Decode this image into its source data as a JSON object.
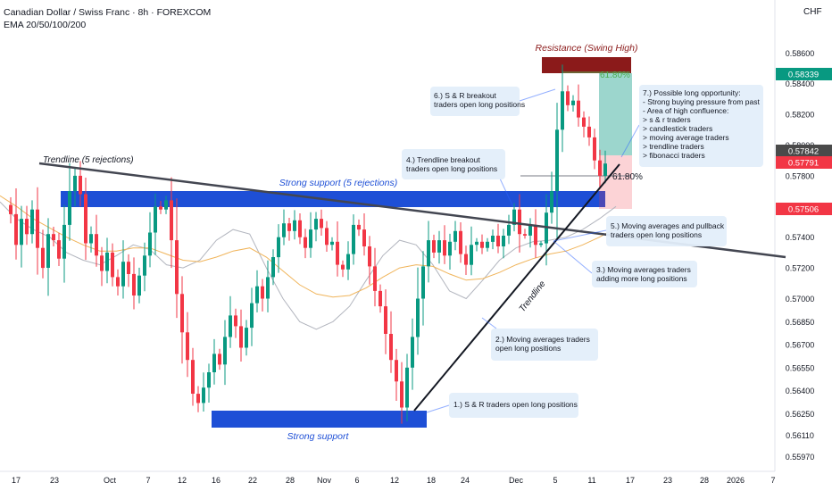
{
  "header": {
    "title": "Canadian Dollar / Swiss Franc · 8h · FOREXCOM",
    "indicator": "EMA 20/50/100/200",
    "currency": "CHF"
  },
  "chart_data": {
    "type": "candlestick",
    "symbol": "CADCHF",
    "interval": "8h",
    "ylim": [
      0.5595,
      0.5873
    ],
    "y_ticks": [
      0.5597,
      0.5611,
      0.5625,
      0.564,
      0.5655,
      0.567,
      0.5685,
      0.57,
      0.572,
      0.574,
      0.576,
      0.578,
      0.58,
      0.582,
      0.584,
      0.586
    ],
    "x_ticks": [
      "17",
      "23",
      "Oct",
      "7",
      "12",
      "16",
      "22",
      "28",
      "Nov",
      "6",
      "12",
      "18",
      "24",
      "Dec",
      "5",
      "11",
      "17",
      "23",
      "28",
      "2026",
      "7"
    ],
    "price_badges": [
      {
        "value": "0.58339",
        "color": "#089981"
      },
      {
        "value": "0.57842",
        "color": "#4a4a4a"
      },
      {
        "value": "0.57791",
        "color": "#f23645"
      },
      {
        "value": "0.57506",
        "color": "#f23645"
      }
    ],
    "ohlc_path": [
      0.5761,
      0.5755,
      0.5735,
      0.5752,
      0.5742,
      0.5758,
      0.5733,
      0.572,
      0.5742,
      0.5738,
      0.5726,
      0.5748,
      0.577,
      0.578,
      0.5768,
      0.5736,
      0.5742,
      0.5728,
      0.5718,
      0.573,
      0.5714,
      0.5708,
      0.5724,
      0.5716,
      0.5702,
      0.5715,
      0.5728,
      0.5743,
      0.576,
      0.5758,
      0.5764,
      0.5738,
      0.5703,
      0.5678,
      0.566,
      0.5638,
      0.5632,
      0.5642,
      0.5652,
      0.5664,
      0.5657,
      0.5675,
      0.5689,
      0.5682,
      0.5668,
      0.5681,
      0.5697,
      0.5708,
      0.57,
      0.5714,
      0.5727,
      0.574,
      0.5749,
      0.5744,
      0.5751,
      0.574,
      0.5733,
      0.5745,
      0.5752,
      0.5746,
      0.5735,
      0.5737,
      0.5722,
      0.5719,
      0.5729,
      0.5748,
      0.5745,
      0.5734,
      0.5721,
      0.5705,
      0.5695,
      0.5677,
      0.566,
      0.5646,
      0.5629,
      0.5655,
      0.5675,
      0.57,
      0.5721,
      0.5738,
      0.573,
      0.5738,
      0.5728,
      0.5737,
      0.5744,
      0.5729,
      0.5722,
      0.5735,
      0.5737,
      0.5733,
      0.5737,
      0.5741,
      0.5734,
      0.5741,
      0.5748,
      0.5758,
      0.5742,
      0.5741,
      0.5748,
      0.5735,
      0.5736,
      0.5756,
      0.577,
      0.581,
      0.5835,
      0.5826,
      0.5829,
      0.5818,
      0.5812,
      0.5805,
      0.579,
      0.578,
      0.5788
    ],
    "ema_fast": [
      0.5763,
      0.5752,
      0.5745,
      0.574,
      0.573,
      0.5725,
      0.5722,
      0.5728,
      0.5735,
      0.5732,
      0.5722,
      0.572,
      0.5725,
      0.5738,
      0.5745,
      0.5742,
      0.572,
      0.57,
      0.5685,
      0.568,
      0.5685,
      0.5695,
      0.5712,
      0.5728,
      0.5738,
      0.5735,
      0.5722,
      0.5705,
      0.57,
      0.5712,
      0.5725,
      0.5733,
      0.5737,
      0.5738,
      0.574,
      0.5745,
      0.5752,
      0.576
    ],
    "ema_slow": [
      0.5767,
      0.576,
      0.5752,
      0.5746,
      0.574,
      0.5735,
      0.5731,
      0.5731,
      0.5733,
      0.5733,
      0.5729,
      0.5725,
      0.5724,
      0.5727,
      0.5731,
      0.5733,
      0.5727,
      0.5718,
      0.5709,
      0.5703,
      0.5701,
      0.5702,
      0.5707,
      0.5714,
      0.572,
      0.5722,
      0.5721,
      0.5716,
      0.5712,
      0.5713,
      0.5717,
      0.5722,
      0.5726,
      0.5729,
      0.5731,
      0.5735,
      0.574,
      0.5746
    ],
    "zones": {
      "resistance": {
        "label": "Resistance (Swing High)"
      },
      "support_upper": {
        "label": "Strong support (5 rejections)"
      },
      "support_lower": {
        "label": "Strong support"
      }
    },
    "trendlines": [
      {
        "label": "Trendline (5 rejections)"
      },
      {
        "label": "Trendline"
      }
    ],
    "fib_labels": [
      "61.80%",
      "61.80%"
    ],
    "annotations": [
      {
        "id": "a1",
        "lines": [
          "1.) S & R traders open long positions"
        ]
      },
      {
        "id": "a2",
        "lines": [
          "2.) Moving averages traders",
          "open long positions"
        ]
      },
      {
        "id": "a3",
        "lines": [
          "3.) Moving averages traders",
          "adding more long positions"
        ]
      },
      {
        "id": "a4",
        "lines": [
          "4.) Trendline breakout",
          "traders open long positions"
        ]
      },
      {
        "id": "a5",
        "lines": [
          "5.) Moving averages and pullback",
          "traders open long positions"
        ]
      },
      {
        "id": "a6",
        "lines": [
          "6.) S & R breakout",
          "traders open long positions"
        ]
      },
      {
        "id": "a7",
        "lines": [
          "7.) Possible long opportunity:",
          "- Strong buying pressure from past",
          "- Area of high confluence:",
          "  > s & r traders",
          "  > candlestick traders",
          "  > moving average traders",
          "  > trendline traders",
          "  > fibonacci traders"
        ]
      }
    ],
    "colors": {
      "up": "#089981",
      "down": "#f23645",
      "support": "#1e4fd6",
      "resistance": "#8b1a1a",
      "ema_fast": "#b2b5be",
      "ema_slow": "#f0b45a"
    }
  }
}
